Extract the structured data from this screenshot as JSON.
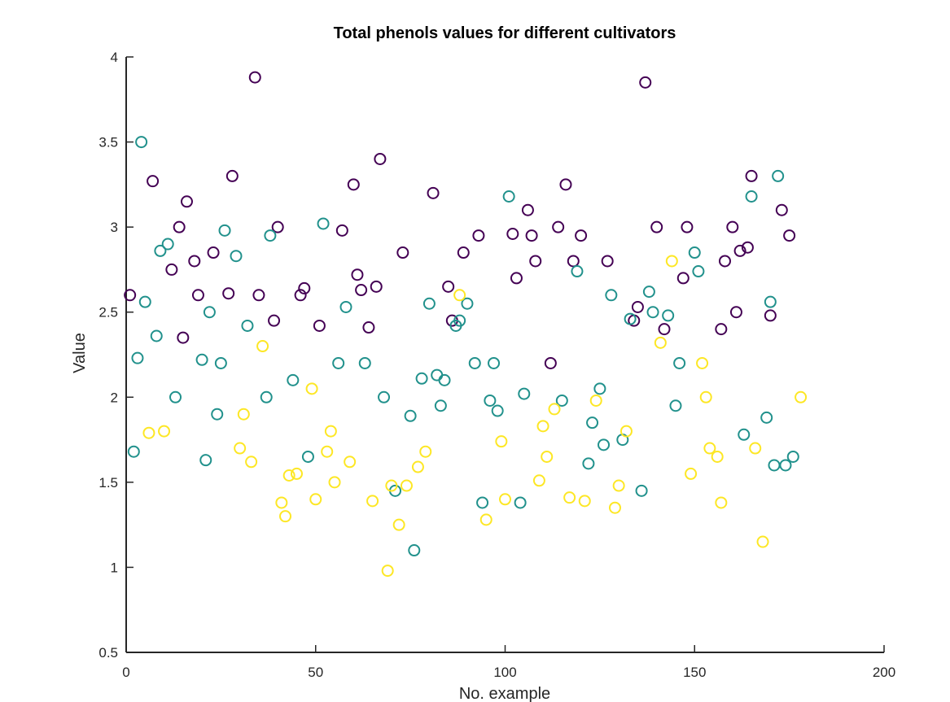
{
  "chart_data": {
    "type": "scatter",
    "title": "Total phenols values for different cultivators",
    "xlabel": "No. example",
    "ylabel": "Value",
    "xlim": [
      0,
      200
    ],
    "ylim": [
      0.5,
      4
    ],
    "xticks": [
      0,
      50,
      100,
      150,
      200
    ],
    "yticks": [
      0.5,
      1,
      1.5,
      2,
      2.5,
      3,
      3.5,
      4
    ],
    "xtick_labels": [
      "0",
      "50",
      "100",
      "150",
      "200"
    ],
    "ytick_labels": [
      "0.5",
      "1",
      "1.5",
      "2",
      "2.5",
      "3",
      "3.5",
      "4"
    ],
    "grid": false,
    "marker": "open-circle",
    "series": [
      {
        "color": "#440154",
        "x": [
          1,
          7,
          12,
          14,
          15,
          16,
          18,
          19,
          23,
          27,
          28,
          34,
          35,
          39,
          40,
          46,
          47,
          51,
          57,
          60,
          61,
          62,
          64,
          66,
          67,
          73,
          81,
          85,
          86,
          89,
          93,
          102,
          103,
          106,
          107,
          108,
          112,
          114,
          116,
          118,
          120,
          127,
          134,
          135,
          137,
          140,
          142,
          147,
          148,
          157,
          158,
          160,
          161,
          162,
          164,
          165,
          170,
          173,
          175
        ],
        "y": [
          2.6,
          3.27,
          2.75,
          3.0,
          2.35,
          3.15,
          2.8,
          2.6,
          2.85,
          2.61,
          3.3,
          3.88,
          2.6,
          2.45,
          3.0,
          2.6,
          2.64,
          2.42,
          2.98,
          3.25,
          2.72,
          2.63,
          2.41,
          2.65,
          3.4,
          2.85,
          3.2,
          2.65,
          2.45,
          2.85,
          2.95,
          2.96,
          2.7,
          3.1,
          2.95,
          2.8,
          2.2,
          3.0,
          3.25,
          2.8,
          2.95,
          2.8,
          2.45,
          2.53,
          3.85,
          3.0,
          2.4,
          2.7,
          3.0,
          2.4,
          2.8,
          3.0,
          2.5,
          2.86,
          2.88,
          3.3,
          2.48,
          3.1,
          2.95
        ]
      },
      {
        "color": "#21918c",
        "x": [
          2,
          3,
          4,
          5,
          8,
          9,
          11,
          13,
          20,
          21,
          22,
          24,
          25,
          26,
          29,
          32,
          37,
          38,
          44,
          48,
          52,
          56,
          58,
          63,
          68,
          71,
          75,
          76,
          78,
          80,
          82,
          83,
          84,
          87,
          88,
          90,
          92,
          94,
          96,
          97,
          98,
          101,
          104,
          105,
          115,
          119,
          122,
          123,
          125,
          126,
          128,
          131,
          133,
          136,
          138,
          139,
          143,
          145,
          146,
          150,
          151,
          163,
          165,
          169,
          170,
          171,
          172,
          174,
          176
        ],
        "y": [
          1.68,
          2.23,
          3.5,
          2.56,
          2.36,
          2.86,
          2.9,
          2.0,
          2.22,
          1.63,
          2.5,
          1.9,
          2.2,
          2.98,
          2.83,
          2.42,
          2.0,
          2.95,
          2.1,
          1.65,
          3.02,
          2.2,
          2.53,
          2.2,
          2.0,
          1.45,
          1.89,
          1.1,
          2.11,
          2.55,
          2.13,
          1.95,
          2.1,
          2.42,
          2.45,
          2.55,
          2.2,
          1.38,
          1.98,
          2.2,
          1.92,
          3.18,
          1.38,
          2.02,
          1.98,
          2.74,
          1.61,
          1.85,
          2.05,
          1.72,
          2.6,
          1.75,
          2.46,
          1.45,
          2.62,
          2.5,
          2.48,
          1.95,
          2.2,
          2.85,
          2.74,
          1.78,
          3.18,
          1.88,
          2.56,
          1.6,
          3.3,
          1.6,
          1.65
        ]
      },
      {
        "color": "#fde725",
        "x": [
          6,
          10,
          30,
          31,
          33,
          36,
          41,
          42,
          43,
          45,
          49,
          50,
          53,
          54,
          55,
          59,
          65,
          69,
          70,
          72,
          74,
          77,
          79,
          88,
          95,
          99,
          100,
          109,
          110,
          111,
          113,
          117,
          121,
          124,
          129,
          130,
          132,
          141,
          144,
          149,
          152,
          153,
          154,
          156,
          157,
          166,
          168,
          178
        ],
        "y": [
          1.79,
          1.8,
          1.7,
          1.9,
          1.62,
          2.3,
          1.38,
          1.3,
          1.54,
          1.55,
          2.05,
          1.4,
          1.68,
          1.8,
          1.5,
          1.62,
          1.39,
          0.98,
          1.48,
          1.25,
          1.48,
          1.59,
          1.68,
          2.6,
          1.28,
          1.74,
          1.4,
          1.51,
          1.83,
          1.65,
          1.93,
          1.41,
          1.39,
          1.98,
          1.35,
          1.48,
          1.8,
          2.32,
          2.8,
          1.55,
          2.2,
          2.0,
          1.7,
          1.65,
          1.38,
          1.7,
          1.15,
          2.0
        ]
      }
    ]
  }
}
